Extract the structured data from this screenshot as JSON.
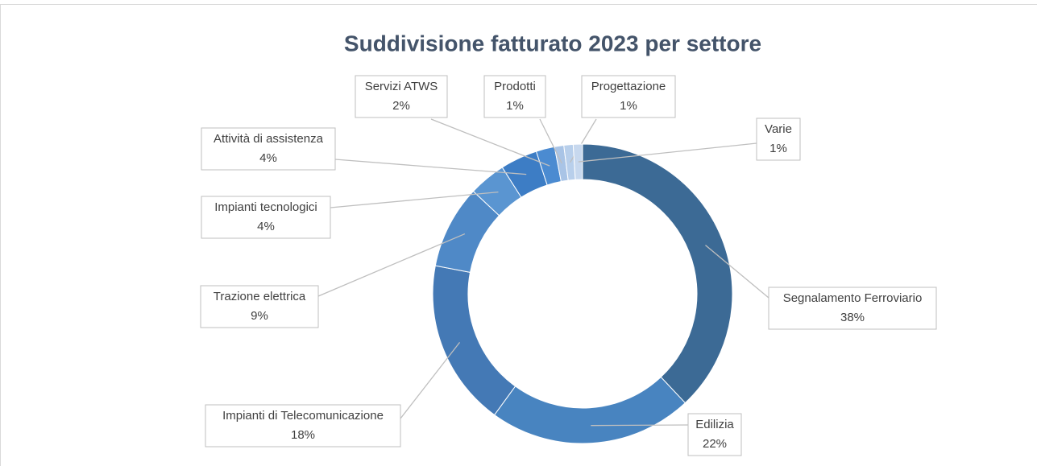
{
  "chart_data": {
    "type": "donut",
    "title": "Suddivisione fatturato 2023 per settore",
    "categories": [
      "Segnalamento Ferroviario",
      "Edilizia",
      "Impianti di Telecomunicazione",
      "Trazione elettrica",
      "Impianti tecnologici",
      "Attività di assistenza",
      "Servizi ATWS",
      "Prodotti",
      "Progettazione",
      "Varie"
    ],
    "values": [
      38,
      22,
      18,
      9,
      4,
      4,
      2,
      1,
      1,
      1
    ],
    "value_labels": [
      "38%",
      "22%",
      "18%",
      "9%",
      "4%",
      "4%",
      "2%",
      "1%",
      "1%",
      "1%"
    ],
    "colors": [
      "#3c6a95",
      "#4884c0",
      "#4479b5",
      "#4f89c7",
      "#5a95d1",
      "#3d7dc5",
      "#4b8bd1",
      "#a9c4e6",
      "#b8cfeb",
      "#c7d8ee"
    ]
  }
}
